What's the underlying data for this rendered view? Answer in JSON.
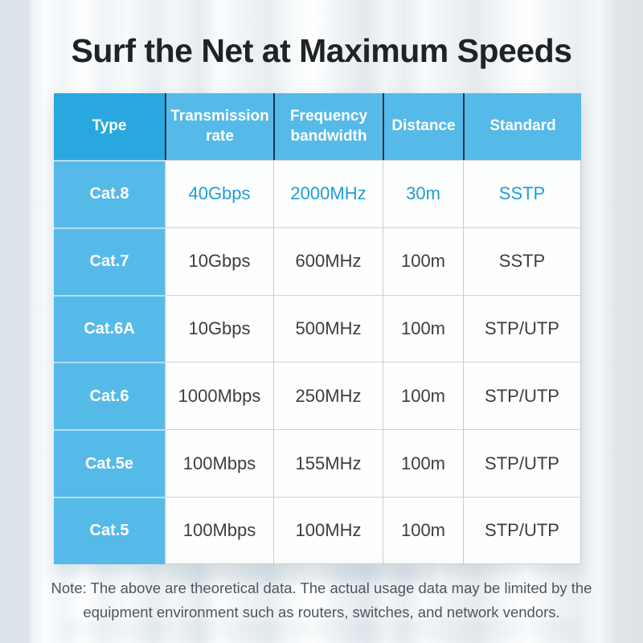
{
  "title": "Surf the Net at Maximum Speeds",
  "note": "Note: The above are theoretical data. The actual usage data may be limited by the equipment environment such as routers, switches, and network vendors.",
  "colors": {
    "header_type_bg": "#29a8e0",
    "header_bg": "#56bae8",
    "label_column_bg": "#56bae8",
    "header_separator": "#16324a",
    "highlight_text": "#1f9dd5",
    "body_text": "#3c3e40",
    "title_text": "#1f2326",
    "note_text": "#4e555b",
    "cell_bg": "#fdfefe",
    "grid_line": "#c6cacd"
  },
  "table": {
    "headers": [
      "Type",
      "Transmission rate",
      "Frequency bandwidth",
      "Distance",
      "Standard"
    ],
    "rows": [
      [
        "Cat.8",
        "40Gbps",
        "2000MHz",
        "30m",
        "SSTP"
      ],
      [
        "Cat.7",
        "10Gbps",
        "600MHz",
        "100m",
        "SSTP"
      ],
      [
        "Cat.6A",
        "10Gbps",
        "500MHz",
        "100m",
        "STP/UTP"
      ],
      [
        "Cat.6",
        "1000Mbps",
        "250MHz",
        "100m",
        "STP/UTP"
      ],
      [
        "Cat.5e",
        "100Mbps",
        "155MHz",
        "100m",
        "STP/UTP"
      ],
      [
        "Cat.5",
        "100Mbps",
        "100MHz",
        "100m",
        "STP/UTP"
      ]
    ]
  },
  "chart_data": {
    "type": "table",
    "title": "Surf the Net at Maximum Speeds",
    "columns": [
      "Type",
      "Transmission rate",
      "Frequency bandwidth",
      "Distance",
      "Standard"
    ],
    "rows": [
      [
        "Cat.8",
        "40Gbps",
        "2000MHz",
        "30m",
        "SSTP"
      ],
      [
        "Cat.7",
        "10Gbps",
        "600MHz",
        "100m",
        "SSTP"
      ],
      [
        "Cat.6A",
        "10Gbps",
        "500MHz",
        "100m",
        "STP/UTP"
      ],
      [
        "Cat.6",
        "1000Mbps",
        "250MHz",
        "100m",
        "STP/UTP"
      ],
      [
        "Cat.5e",
        "100Mbps",
        "155MHz",
        "100m",
        "STP/UTP"
      ],
      [
        "Cat.5",
        "100Mbps",
        "100MHz",
        "100m",
        "STP/UTP"
      ]
    ],
    "highlighted_row": "Cat.8",
    "note": "Note: The above are theoretical data. The actual usage data may be limited by the equipment environment such as routers, switches, and network vendors."
  }
}
